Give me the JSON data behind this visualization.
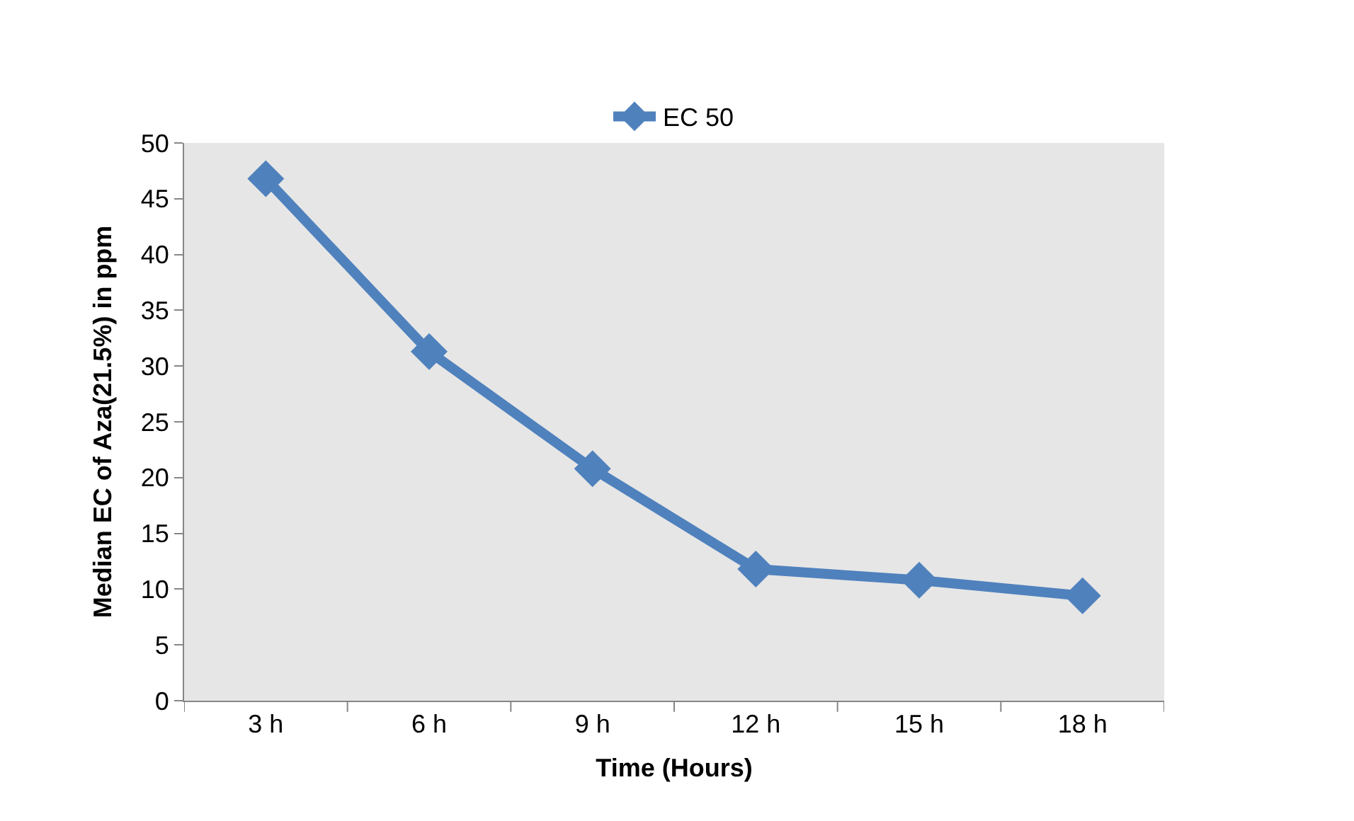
{
  "chart_data": {
    "type": "line",
    "xlabel": "Time (Hours)",
    "ylabel": "Median EC of Aza(21.5%) in ppm",
    "categories": [
      "3 h",
      "6 h",
      "9 h",
      "12 h",
      "15 h",
      "18 h"
    ],
    "series": [
      {
        "name": "EC 50",
        "color": "#4f81bd",
        "values": [
          46.8,
          31.3,
          20.8,
          11.8,
          10.8,
          9.4
        ]
      }
    ],
    "ylim": [
      0,
      50
    ],
    "yticks": [
      0,
      5,
      10,
      15,
      20,
      25,
      30,
      35,
      40,
      45,
      50
    ],
    "grid": false,
    "legend": "top",
    "marker": "diamond",
    "line_style": "solid"
  }
}
